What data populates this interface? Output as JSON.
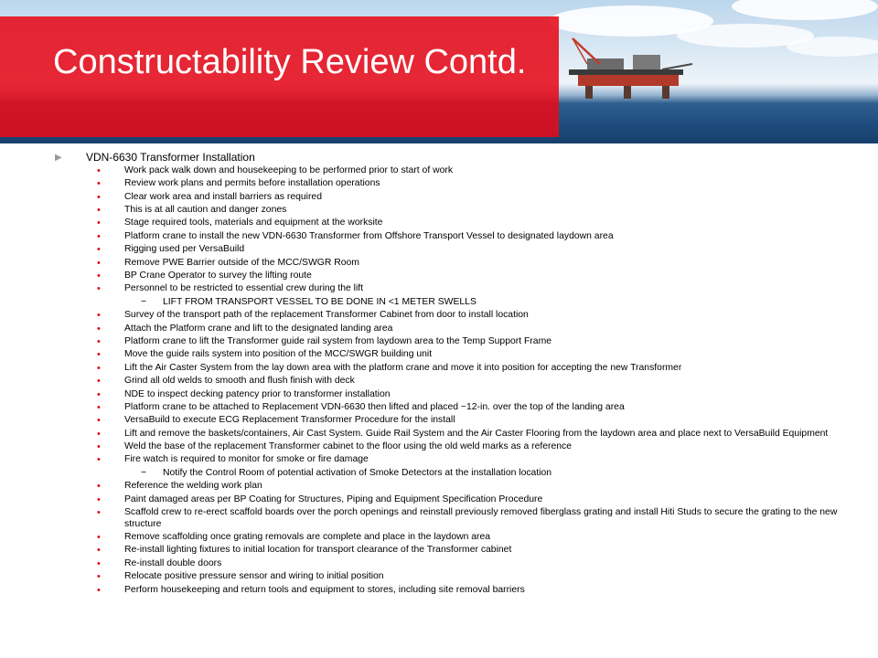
{
  "slide": {
    "title": "Constructability Review Contd.",
    "heading": "VDN-6630  Transformer  Installation",
    "items": [
      {
        "text": "Work pack walk down and housekeeping to be performed prior to start of work",
        "level": 1
      },
      {
        "text": "Review work plans and permits before installation operations",
        "level": 1
      },
      {
        "text": "Clear work area and install barriers as required",
        "level": 1
      },
      {
        "text": "This is at all caution and danger zones",
        "level": 1
      },
      {
        "text": "Stage required tools, materials and equipment at the worksite",
        "level": 1
      },
      {
        "text": "Platform crane to install the new VDN-6630 Transformer from Offshore Transport Vessel to designated laydown area",
        "level": 1
      },
      {
        "text": "Rigging used per VersaBuild",
        "level": 1
      },
      {
        "text": "Remove PWE Barrier outside of the MCC/SWGR Room",
        "level": 1
      },
      {
        "text": "BP Crane Operator to survey the lifting route",
        "level": 1
      },
      {
        "text": "Personnel to be restricted to essential crew during the lift",
        "level": 1
      },
      {
        "text": "LIFT FROM TRANSPORT VESSEL TO BE DONE IN <1 METER SWELLS",
        "level": 2
      },
      {
        "text": "Survey  of the transport path of the replacement Transformer Cabinet from door to install location",
        "level": 1
      },
      {
        "text": "Attach the Platform crane and lift to the designated landing area",
        "level": 1
      },
      {
        "text": "Platform crane to lift the Transformer guide rail system from laydown area to the Temp Support Frame",
        "level": 1
      },
      {
        "text": "Move  the guide rails system into position of the MCC/SWGR  building unit",
        "level": 1
      },
      {
        "text": "Lift the Air Caster System from the lay down area with the platform crane and move it into position for accepting the new Transformer",
        "level": 1
      },
      {
        "text": "Grind all old welds to smooth and flush finish with deck",
        "level": 1
      },
      {
        "text": "NDE to inspect decking patency prior to transformer installation",
        "level": 1
      },
      {
        "text": "Platform crane to  be attached to Replacement VDN-6630 then lifted and placed ~12-in. over the top of the landing area",
        "level": 1
      },
      {
        "text": "VersaBuild to execute ECG Replacement Transformer Procedure for the install",
        "level": 1
      },
      {
        "text": "Lift and remove the baskets/containers, Air Cast System. Guide Rail System and the Air Caster Flooring from the laydown area and place next to VersaBuild Equipment",
        "level": 1
      },
      {
        "text": "Weld the base of the replacement Transformer cabinet to the floor using the old weld marks as a reference",
        "level": 1
      },
      {
        "text": "Fire watch is required to monitor for smoke or fire damage",
        "level": 1
      },
      {
        "text": "Notify the Control Room of potential activation of Smoke Detectors at the installation location",
        "level": 2
      },
      {
        "text": "Reference the welding work plan",
        "level": 1
      },
      {
        "text": "Paint damaged areas per BP Coating for Structures, Piping and Equipment Specification Procedure",
        "level": 1
      },
      {
        "text": "Scaffold crew to re-erect scaffold boards over the porch openings and reinstall previously removed fiberglass grating and install Hiti Studs to secure the grating to the new structure",
        "level": 1
      },
      {
        "text": "Remove scaffolding once grating removals are complete and place in the laydown area",
        "level": 1
      },
      {
        "text": "Re-install lighting fixtures to initial location for transport clearance of the Transformer cabinet",
        "level": 1
      },
      {
        "text": "Re-install double doors",
        "level": 1
      },
      {
        "text": "Relocate positive pressure sensor and wiring to initial position",
        "level": 1
      },
      {
        "text": "Perform housekeeping and return tools and equipment to stores, including site removal barriers",
        "level": 1
      }
    ]
  },
  "colors": {
    "title_box": "#e60a19",
    "bullet": "#e30613",
    "arrow": "#9a9a9a"
  },
  "icons": {
    "heading_marker": "triangle-right-icon",
    "item_marker": "dot-icon",
    "sub_marker": "dash-icon"
  }
}
